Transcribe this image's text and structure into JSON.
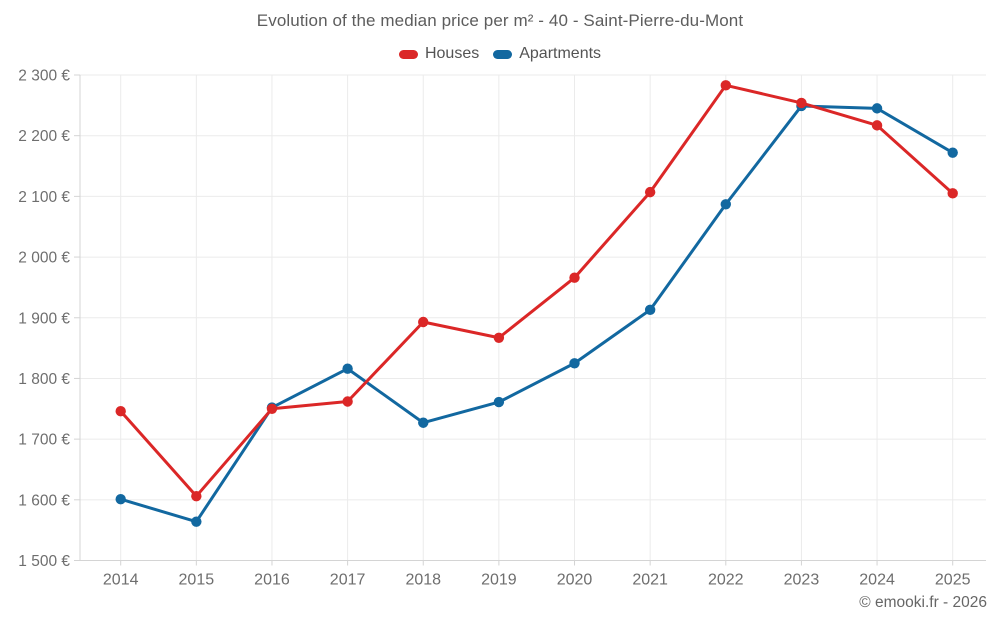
{
  "title": "Evolution of the median price per m² - 40 - Saint-Pierre-du-Mont",
  "footer": {
    "text": "© emooki.fr - 2026"
  },
  "colors": {
    "houses": "#db2727",
    "apartments": "#1268a0",
    "gridline": "#ebebeb",
    "axis_line": "#d4d4d4",
    "tick_text": "#6e6e6e",
    "title_text": "#5d5d5d",
    "legend_text": "#545454"
  },
  "chart_data": {
    "type": "line",
    "title": "Evolution of the median price per m² - 40 - Saint-Pierre-du-Mont",
    "categories": [
      "2014",
      "2015",
      "2016",
      "2017",
      "2018",
      "2019",
      "2020",
      "2021",
      "2022",
      "2023",
      "2024",
      "2025"
    ],
    "series": [
      {
        "name": "Houses",
        "color": "#db2727",
        "values": [
          1746,
          1606,
          1750,
          1762,
          1893,
          1867,
          1966,
          2107,
          2283,
          2254,
          2217,
          2105
        ]
      },
      {
        "name": "Apartments",
        "color": "#1268a0",
        "values": [
          1601,
          1564,
          1752,
          1816,
          1727,
          1761,
          1825,
          1913,
          2087,
          2249,
          2245,
          2172
        ]
      }
    ],
    "xlabel": "",
    "ylabel": "",
    "ylim": [
      1500,
      2300
    ],
    "y_ticks": [
      {
        "value": 2300,
        "label": "2 300 €"
      },
      {
        "value": 2200,
        "label": "2 200 €"
      },
      {
        "value": 2100,
        "label": "2 100 €"
      },
      {
        "value": 2000,
        "label": "2 000 €"
      },
      {
        "value": 1900,
        "label": "1 900 €"
      },
      {
        "value": 1800,
        "label": "1 800 €"
      },
      {
        "value": 1700,
        "label": "1 700 €"
      },
      {
        "value": 1600,
        "label": "1 600 €"
      },
      {
        "value": 1500,
        "label": "1 500 €"
      }
    ],
    "grid": true,
    "legend_position": "top",
    "unit": "€"
  }
}
